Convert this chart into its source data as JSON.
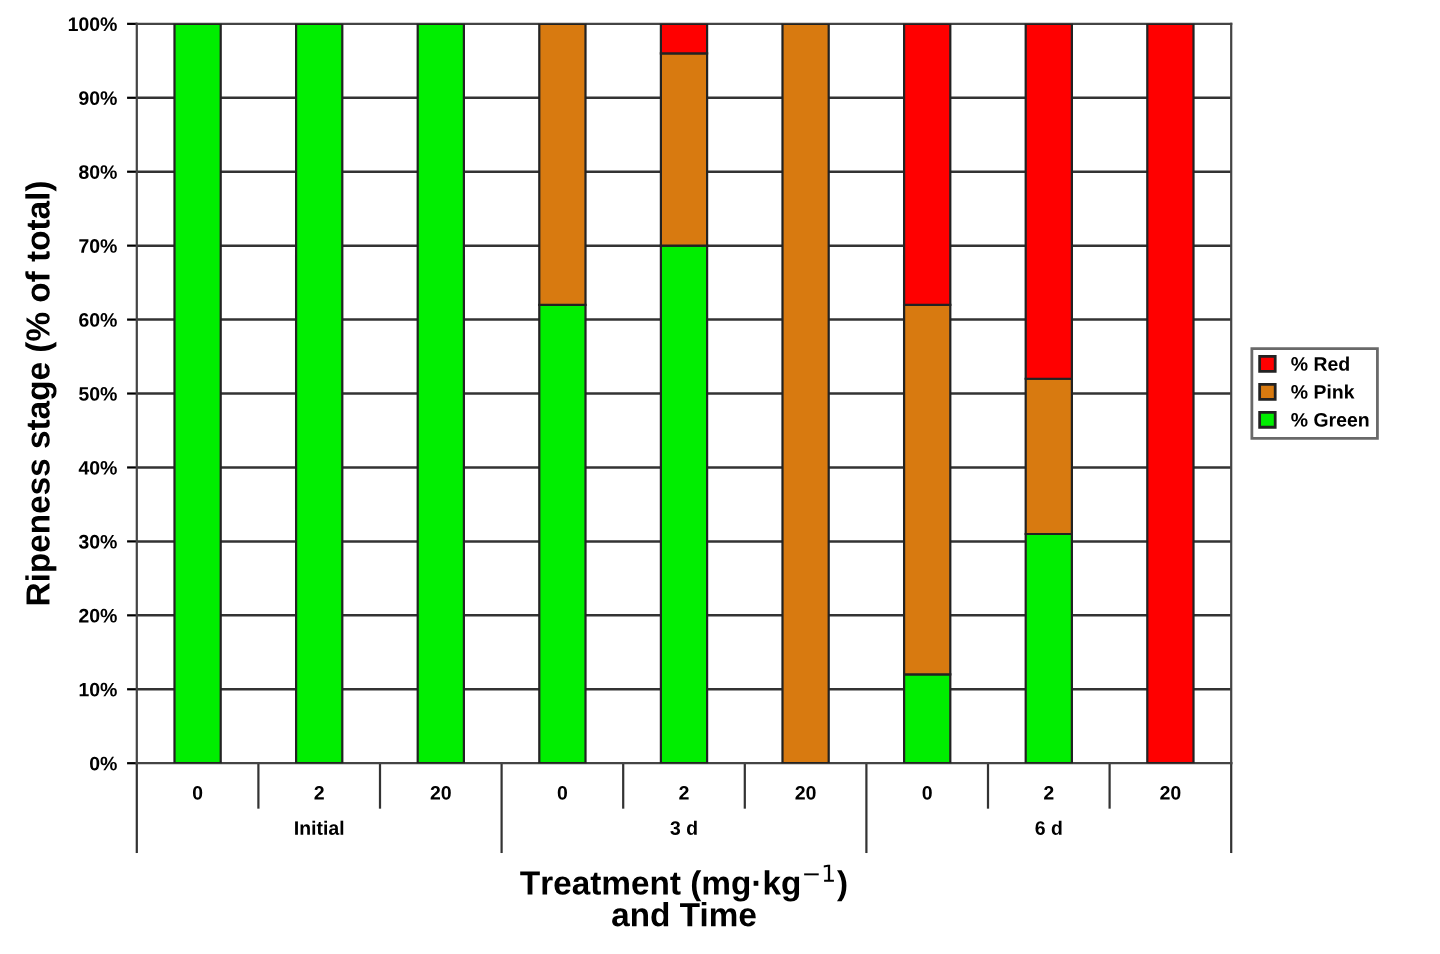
{
  "chart_data": {
    "type": "bar",
    "stacked": true,
    "categories": [
      "0",
      "2",
      "20",
      "0",
      "2",
      "20",
      "0",
      "2",
      "20"
    ],
    "series": [
      {
        "name": "% Green",
        "color": "#00ee00",
        "values": [
          100,
          100,
          100,
          62,
          70,
          0,
          12,
          31,
          0
        ]
      },
      {
        "name": "% Pink",
        "color": "#d87a10",
        "values": [
          0,
          0,
          0,
          38,
          26,
          100,
          50,
          21,
          0
        ]
      },
      {
        "name": "% Red",
        "color": "#ff0000",
        "values": [
          0,
          0,
          0,
          0,
          4,
          0,
          38,
          48,
          100
        ]
      }
    ],
    "ylim": [
      0,
      100
    ],
    "yticks": [
      {
        "value": 0,
        "label": "0%"
      },
      {
        "value": 10,
        "label": "10%"
      },
      {
        "value": 20,
        "label": "20%"
      },
      {
        "value": 30,
        "label": "30%"
      },
      {
        "value": 40,
        "label": "40%"
      },
      {
        "value": 50,
        "label": "50%"
      },
      {
        "value": 60,
        "label": "60%"
      },
      {
        "value": 70,
        "label": "70%"
      },
      {
        "value": 80,
        "label": "80%"
      },
      {
        "value": 90,
        "label": "90%"
      },
      {
        "value": 100,
        "label": "100%"
      }
    ],
    "ylabel": "Ripeness stage (% of total)",
    "xlabel": "Treatment (mg·kg$^{−1}$)\nand Time",
    "annotations": [
      "Initial",
      "3 d",
      "6 d"
    ],
    "grid": "y",
    "legend": "right"
  }
}
